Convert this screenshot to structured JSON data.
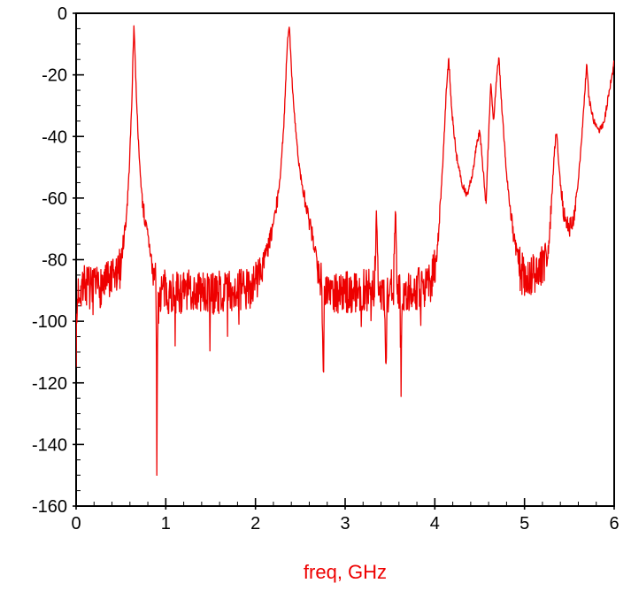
{
  "chart_data": {
    "type": "line",
    "title": "",
    "xlabel": "freq, GHz",
    "ylabel": "",
    "xlim": [
      0,
      6
    ],
    "ylim": [
      -160,
      0
    ],
    "x_major_ticks": [
      0,
      1,
      2,
      3,
      4,
      5,
      6
    ],
    "x_minor_step": 0.2,
    "y_major_ticks": [
      0,
      -20,
      -40,
      -60,
      -80,
      -100,
      -120,
      -140,
      -160
    ],
    "y_minor_step": 5,
    "grid": false,
    "legend": null,
    "colors": {
      "trace": "#ee0000",
      "xlabel": "#ee0000",
      "axis": "#000000",
      "background": "#ffffff"
    },
    "series": [
      {
        "name": "trace",
        "units": "dB",
        "noise_floor_db": -90,
        "key_features": [
          {
            "freq_ghz": 0.65,
            "level_db": -2,
            "type": "resonance-peak"
          },
          {
            "freq_ghz": 0.9,
            "level_db": -157,
            "type": "deep-null"
          },
          {
            "freq_ghz": 2.37,
            "level_db": -3,
            "type": "resonance-peak"
          },
          {
            "freq_ghz": 2.75,
            "level_db": -120,
            "type": "null"
          },
          {
            "freq_ghz": 3.35,
            "level_db": -64,
            "type": "spur"
          },
          {
            "freq_ghz": 3.56,
            "level_db": -63,
            "type": "spur"
          },
          {
            "freq_ghz": 4.15,
            "level_db": -15,
            "type": "resonance-peak"
          },
          {
            "freq_ghz": 4.5,
            "level_db": -38,
            "type": "local-peak"
          },
          {
            "freq_ghz": 4.72,
            "level_db": -15,
            "type": "resonance-peak"
          },
          {
            "freq_ghz": 5.35,
            "level_db": -38,
            "type": "local-peak"
          },
          {
            "freq_ghz": 5.7,
            "level_db": -16,
            "type": "resonance-peak"
          },
          {
            "freq_ghz": 6.0,
            "level_db": -16,
            "type": "edge-rise"
          }
        ],
        "envelope_points": [
          [
            0,
            -108
          ],
          [
            0.02,
            -90
          ],
          [
            0.1,
            -88
          ],
          [
            0.2,
            -90
          ],
          [
            0.3,
            -88
          ],
          [
            0.4,
            -87
          ],
          [
            0.48,
            -84
          ],
          [
            0.52,
            -76
          ],
          [
            0.56,
            -66
          ],
          [
            0.59,
            -52
          ],
          [
            0.62,
            -30
          ],
          [
            0.645,
            -3
          ],
          [
            0.67,
            -25
          ],
          [
            0.7,
            -45
          ],
          [
            0.73,
            -58
          ],
          [
            0.77,
            -68
          ],
          [
            0.82,
            -76
          ],
          [
            0.86,
            -83
          ],
          [
            0.885,
            -88
          ],
          [
            0.895,
            -95
          ],
          [
            0.9,
            -157
          ],
          [
            0.91,
            -95
          ],
          [
            0.95,
            -90
          ],
          [
            1.1,
            -91
          ],
          [
            1.3,
            -90
          ],
          [
            1.5,
            -91
          ],
          [
            1.7,
            -90
          ],
          [
            1.9,
            -90
          ],
          [
            2,
            -87
          ],
          [
            2.08,
            -82
          ],
          [
            2.16,
            -74
          ],
          [
            2.23,
            -64
          ],
          [
            2.28,
            -52
          ],
          [
            2.32,
            -34
          ],
          [
            2.355,
            -10
          ],
          [
            2.375,
            -3
          ],
          [
            2.4,
            -18
          ],
          [
            2.44,
            -35
          ],
          [
            2.48,
            -48
          ],
          [
            2.53,
            -58
          ],
          [
            2.6,
            -68
          ],
          [
            2.66,
            -76
          ],
          [
            2.72,
            -84
          ],
          [
            2.74,
            -88
          ],
          [
            2.755,
            -120
          ],
          [
            2.77,
            -89
          ],
          [
            2.85,
            -90
          ],
          [
            3,
            -91
          ],
          [
            3.1,
            -90
          ],
          [
            3.2,
            -90
          ],
          [
            3.3,
            -90
          ],
          [
            3.33,
            -88
          ],
          [
            3.35,
            -64
          ],
          [
            3.37,
            -90
          ],
          [
            3.44,
            -92
          ],
          [
            3.455,
            -116
          ],
          [
            3.47,
            -90
          ],
          [
            3.54,
            -90
          ],
          [
            3.56,
            -63
          ],
          [
            3.58,
            -90
          ],
          [
            3.61,
            -90
          ],
          [
            3.625,
            -120
          ],
          [
            3.64,
            -90
          ],
          [
            3.75,
            -90
          ],
          [
            3.9,
            -89
          ],
          [
            3.97,
            -86
          ],
          [
            4.02,
            -78
          ],
          [
            4.06,
            -64
          ],
          [
            4.1,
            -42
          ],
          [
            4.13,
            -24
          ],
          [
            4.155,
            -15
          ],
          [
            4.19,
            -32
          ],
          [
            4.24,
            -46
          ],
          [
            4.3,
            -55
          ],
          [
            4.36,
            -59
          ],
          [
            4.42,
            -52
          ],
          [
            4.46,
            -44
          ],
          [
            4.5,
            -38
          ],
          [
            4.53,
            -48
          ],
          [
            4.57,
            -62
          ],
          [
            4.6,
            -40
          ],
          [
            4.625,
            -22
          ],
          [
            4.655,
            -36
          ],
          [
            4.69,
            -20
          ],
          [
            4.715,
            -15
          ],
          [
            4.75,
            -32
          ],
          [
            4.8,
            -52
          ],
          [
            4.85,
            -66
          ],
          [
            4.9,
            -76
          ],
          [
            4.95,
            -83
          ],
          [
            5,
            -86
          ],
          [
            5.1,
            -85
          ],
          [
            5.2,
            -82
          ],
          [
            5.26,
            -79
          ],
          [
            5.3,
            -62
          ],
          [
            5.33,
            -46
          ],
          [
            5.355,
            -38
          ],
          [
            5.4,
            -56
          ],
          [
            5.45,
            -67
          ],
          [
            5.5,
            -70
          ],
          [
            5.55,
            -66
          ],
          [
            5.6,
            -54
          ],
          [
            5.64,
            -40
          ],
          [
            5.67,
            -26
          ],
          [
            5.695,
            -16
          ],
          [
            5.72,
            -28
          ],
          [
            5.77,
            -35
          ],
          [
            5.83,
            -38
          ],
          [
            5.89,
            -35
          ],
          [
            5.94,
            -26
          ],
          [
            6,
            -16
          ]
        ],
        "noise": {
          "samples": 1500,
          "seed": 7,
          "floor_threshold_db": -80,
          "floor_amp_db": 7,
          "mid_threshold_db": -60,
          "mid_amp_db": 3,
          "peak_amp_db": 1.2,
          "spike_prob": 0.025,
          "spike_extra_db": 16
        }
      }
    ]
  }
}
